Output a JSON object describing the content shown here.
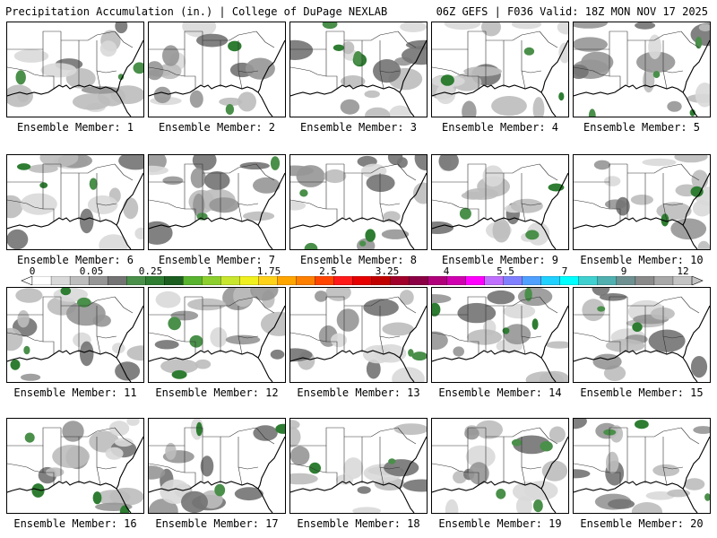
{
  "header": {
    "left": "Precipitation Accumulation (in.) | College of DuPage NEXLAB",
    "right": "06Z GEFS | F036 Valid: 18Z MON NOV 17 2025"
  },
  "panels": [
    {
      "label": "Ensemble Member: 1"
    },
    {
      "label": "Ensemble Member: 2"
    },
    {
      "label": "Ensemble Member: 3"
    },
    {
      "label": "Ensemble Member: 4"
    },
    {
      "label": "Ensemble Member: 5"
    },
    {
      "label": "Ensemble Member: 6"
    },
    {
      "label": "Ensemble Member: 7"
    },
    {
      "label": "Ensemble Member: 8"
    },
    {
      "label": "Ensemble Member: 9"
    },
    {
      "label": "Ensemble Member: 10"
    },
    {
      "label": "Ensemble Member: 11"
    },
    {
      "label": "Ensemble Member: 12"
    },
    {
      "label": "Ensemble Member: 13"
    },
    {
      "label": "Ensemble Member: 14"
    },
    {
      "label": "Ensemble Member: 15"
    },
    {
      "label": "Ensemble Member: 16"
    },
    {
      "label": "Ensemble Member: 17"
    },
    {
      "label": "Ensemble Member: 18"
    },
    {
      "label": "Ensemble Member: 19"
    },
    {
      "label": "Ensemble Member: 20"
    }
  ],
  "colorbar": {
    "labels": [
      "0",
      "0.05",
      "0.25",
      "1",
      "1.75",
      "2.5",
      "3.25",
      "4",
      "5.5",
      "7",
      "9",
      "12"
    ],
    "colors": [
      "#ffffff",
      "#d9d9d9",
      "#bdbdbd",
      "#969696",
      "#737373",
      "#4a8f4a",
      "#2e7d32",
      "#1b5e20",
      "#58b32e",
      "#8ccf2e",
      "#c8e62e",
      "#f0f020",
      "#ffd21a",
      "#ffa500",
      "#ff7f00",
      "#ff4500",
      "#ff1a1a",
      "#e60000",
      "#c00000",
      "#a0002a",
      "#8b0045",
      "#b0007a",
      "#d000b0",
      "#ff00ff",
      "#c070ff",
      "#8080ff",
      "#4fa0ff",
      "#20d0ff",
      "#00ffff",
      "#40d0d0",
      "#50b0b0",
      "#6e9090",
      "#8a8a8a",
      "#a8a8a8",
      "#c4c4c4"
    ]
  }
}
